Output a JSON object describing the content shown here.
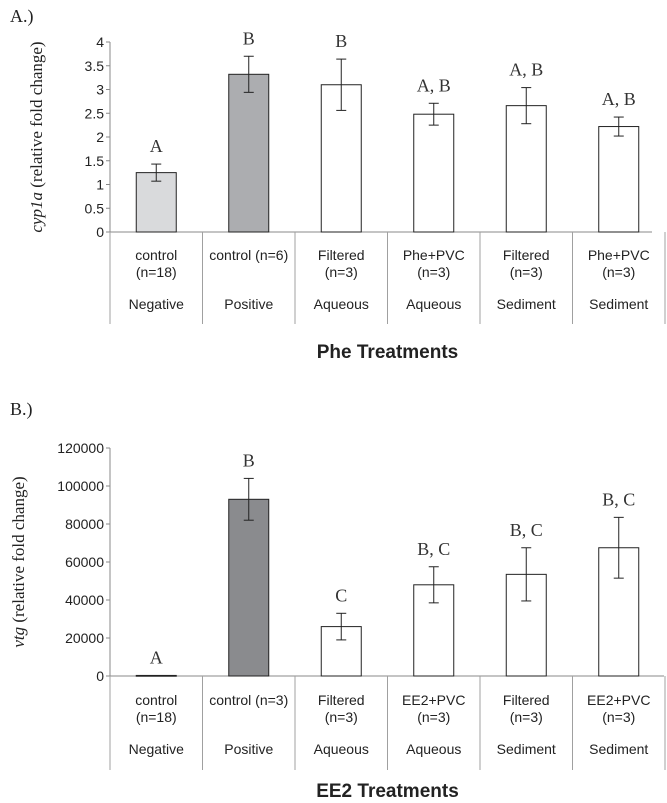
{
  "chart_data": [
    {
      "type": "bar",
      "panel_label": "A.)",
      "xlabel": "Phe Treatments",
      "ylabel_italic": "cyp1a",
      "ylabel_rest": " (relative fold change)",
      "ylim": [
        0,
        4
      ],
      "yticks": [
        "0",
        "0.5",
        "1",
        "1.5",
        "2",
        "2.5",
        "3",
        "3.5",
        "4"
      ],
      "categories": [
        {
          "line1": "control",
          "line2": "(n=18)",
          "group": "Negative"
        },
        {
          "line1": "control (n=6)",
          "line2": "",
          "group": "Positive"
        },
        {
          "line1": "Filtered",
          "line2": "(n=3)",
          "group": "Aqueous"
        },
        {
          "line1": "Phe+PVC",
          "line2": "(n=3)",
          "group": "Aqueous"
        },
        {
          "line1": "Filtered",
          "line2": "(n=3)",
          "group": "Sediment"
        },
        {
          "line1": "Phe+PVC",
          "line2": "(n=3)",
          "group": "Sediment"
        }
      ],
      "values": [
        1.25,
        3.32,
        3.1,
        2.48,
        2.66,
        2.22
      ],
      "errors": [
        0.18,
        0.38,
        0.54,
        0.23,
        0.38,
        0.2
      ],
      "letters": [
        "A",
        "B",
        "B",
        "A, B",
        "A, B",
        "A, B"
      ],
      "colors": [
        "#d9dadc",
        "#acadb0",
        "#ffffff",
        "#ffffff",
        "#ffffff",
        "#ffffff"
      ],
      "grid": false
    },
    {
      "type": "bar",
      "panel_label": "B.)",
      "xlabel": "EE2 Treatments",
      "ylabel_italic": "vtg",
      "ylabel_rest": " (relative fold change)",
      "ylim": [
        0,
        120000
      ],
      "yticks": [
        "0",
        "20000",
        "40000",
        "60000",
        "80000",
        "100000",
        "120000"
      ],
      "categories": [
        {
          "line1": "control",
          "line2": "(n=18)",
          "group": "Negative"
        },
        {
          "line1": "control (n=3)",
          "line2": "",
          "group": "Positive"
        },
        {
          "line1": "Filtered",
          "line2": "(n=3)",
          "group": "Aqueous"
        },
        {
          "line1": "EE2+PVC",
          "line2": "(n=3)",
          "group": "Aqueous"
        },
        {
          "line1": "Filtered",
          "line2": "(n=3)",
          "group": "Sediment"
        },
        {
          "line1": "EE2+PVC",
          "line2": "(n=3)",
          "group": "Sediment"
        }
      ],
      "values": [
        300,
        93000,
        26000,
        48000,
        53500,
        67500
      ],
      "errors": [
        0,
        11000,
        7000,
        9500,
        14000,
        16000
      ],
      "letters": [
        "A",
        "B",
        "C",
        "B, C",
        "B, C",
        "B, C"
      ],
      "colors": [
        "#d9dadc",
        "#8a8b8e",
        "#ffffff",
        "#ffffff",
        "#ffffff",
        "#ffffff"
      ],
      "grid": false
    }
  ]
}
